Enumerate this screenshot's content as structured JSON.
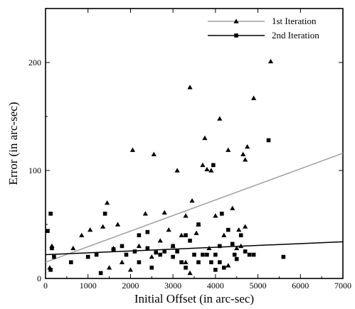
{
  "chart_data": {
    "type": "scatter",
    "xlabel": "Initial Offset (in arc-sec)",
    "ylabel": "Error (in arc-sec)",
    "xlim": [
      0,
      7000
    ],
    "ylim": [
      0,
      250
    ],
    "x_ticks": [
      0,
      1000,
      2000,
      3000,
      4000,
      5000,
      6000,
      7000
    ],
    "y_ticks": [
      0,
      100,
      200
    ],
    "legend_position": "top-right",
    "grid": false,
    "series": [
      {
        "name": "1st Iteration",
        "marker": "triangle",
        "color": "#000000",
        "points": [
          [
            100,
            10
          ],
          [
            150,
            30
          ],
          [
            650,
            28
          ],
          [
            850,
            40
          ],
          [
            1050,
            45
          ],
          [
            1350,
            48
          ],
          [
            1450,
            70
          ],
          [
            1700,
            50
          ],
          [
            2050,
            119
          ],
          [
            2350,
            60
          ],
          [
            2550,
            115
          ],
          [
            2800,
            61
          ],
          [
            3100,
            100
          ],
          [
            3400,
            177
          ],
          [
            3450,
            72
          ],
          [
            3300,
            58
          ],
          [
            3700,
            105
          ],
          [
            3750,
            130
          ],
          [
            3800,
            101
          ],
          [
            3900,
            100
          ],
          [
            4100,
            148
          ],
          [
            4300,
            119
          ],
          [
            4650,
            115
          ],
          [
            4700,
            110
          ],
          [
            4750,
            122
          ],
          [
            4900,
            167
          ],
          [
            5300,
            201
          ],
          [
            3550,
            42
          ],
          [
            4000,
            58
          ],
          [
            4400,
            65
          ],
          [
            4550,
            45
          ],
          [
            2900,
            45
          ],
          [
            3200,
            40
          ],
          [
            2200,
            30
          ],
          [
            1600,
            28
          ],
          [
            3600,
            50
          ],
          [
            4200,
            40
          ],
          [
            2700,
            35
          ],
          [
            4600,
            30
          ],
          [
            3000,
            30
          ],
          [
            2500,
            20
          ],
          [
            1800,
            15
          ],
          [
            3300,
            15
          ],
          [
            4500,
            28
          ],
          [
            3850,
            28
          ],
          [
            1500,
            10
          ],
          [
            2000,
            8
          ],
          [
            4300,
            12
          ],
          [
            3400,
            5
          ],
          [
            4700,
            48
          ]
        ]
      },
      {
        "name": "2nd Iteration",
        "marker": "square",
        "color": "#000000",
        "points": [
          [
            50,
            44
          ],
          [
            120,
            60
          ],
          [
            150,
            28
          ],
          [
            200,
            20
          ],
          [
            120,
            8
          ],
          [
            600,
            15
          ],
          [
            1000,
            20
          ],
          [
            1200,
            22
          ],
          [
            1400,
            60
          ],
          [
            1600,
            27
          ],
          [
            1800,
            30
          ],
          [
            1900,
            22
          ],
          [
            2100,
            25
          ],
          [
            2200,
            15
          ],
          [
            2400,
            28
          ],
          [
            2400,
            43
          ],
          [
            2600,
            24
          ],
          [
            2700,
            22
          ],
          [
            2800,
            25
          ],
          [
            3000,
            20
          ],
          [
            3000,
            30
          ],
          [
            3100,
            25
          ],
          [
            3200,
            15
          ],
          [
            3300,
            10
          ],
          [
            3400,
            35
          ],
          [
            3500,
            22
          ],
          [
            3600,
            15
          ],
          [
            3600,
            50
          ],
          [
            3700,
            22
          ],
          [
            3800,
            22
          ],
          [
            3900,
            15
          ],
          [
            3950,
            105
          ],
          [
            4000,
            22
          ],
          [
            4100,
            15
          ],
          [
            4150,
            60
          ],
          [
            4200,
            10
          ],
          [
            4300,
            45
          ],
          [
            4400,
            32
          ],
          [
            4450,
            22
          ],
          [
            4500,
            18
          ],
          [
            4600,
            40
          ],
          [
            4700,
            25
          ],
          [
            4800,
            22
          ],
          [
            4900,
            22
          ],
          [
            5250,
            128
          ],
          [
            5600,
            20
          ],
          [
            2200,
            40
          ],
          [
            3300,
            40
          ],
          [
            4000,
            8
          ],
          [
            4100,
            30
          ],
          [
            2500,
            10
          ],
          [
            1300,
            5
          ]
        ]
      }
    ],
    "fit_lines": [
      {
        "name": "1st Iteration",
        "color": "#a0a0a0",
        "from": [
          0,
          15
        ],
        "to": [
          7000,
          116
        ]
      },
      {
        "name": "2nd Iteration",
        "color": "#000000",
        "from": [
          0,
          22
        ],
        "to": [
          7000,
          34
        ]
      }
    ]
  }
}
